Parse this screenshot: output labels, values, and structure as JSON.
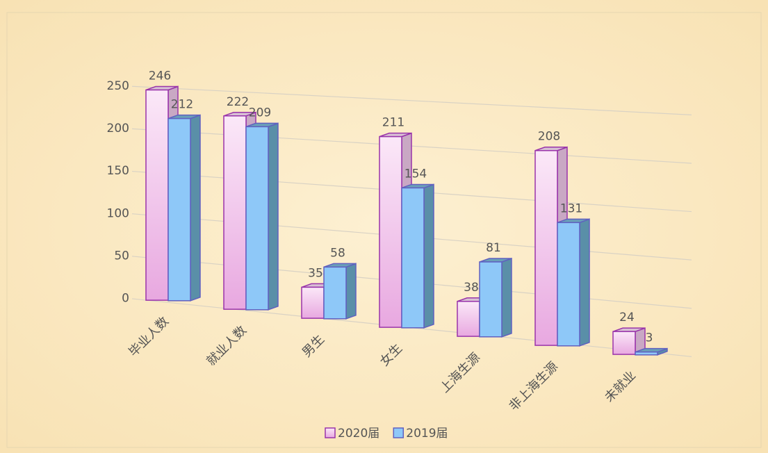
{
  "chart_data": {
    "type": "bar3d",
    "categories": [
      "毕业人数",
      "就业人数",
      "男生",
      "女生",
      "上海生源",
      "非上海生源",
      "未就业"
    ],
    "series": [
      {
        "name": "2020届",
        "color": "#f0c0ea",
        "values": [
          246,
          222,
          35,
          211,
          38,
          208,
          24
        ]
      },
      {
        "name": "2019届",
        "color": "#8ec8f8",
        "values": [
          212,
          209,
          58,
          154,
          81,
          131,
          3
        ]
      }
    ],
    "ylim": [
      0,
      250
    ],
    "yticks": [
      0,
      50,
      100,
      150,
      200,
      250
    ],
    "grid": true,
    "legend": "bottom"
  }
}
